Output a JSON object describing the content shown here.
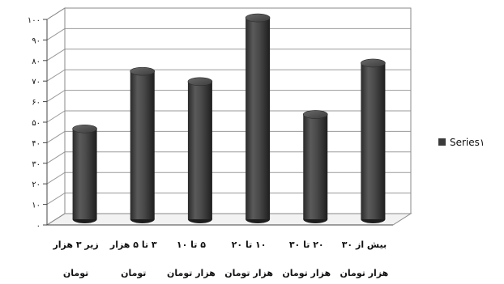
{
  "chart_data": {
    "type": "bar",
    "style": "3d-cylinder",
    "categories": [
      [
        "زیر ۳ هزار",
        "تومان"
      ],
      [
        "۳ تا ۵ هزار",
        "تومان"
      ],
      [
        "۵ تا ۱۰",
        "هزار تومان"
      ],
      [
        "۱۰ تا ۲۰",
        "هزار تومان"
      ],
      [
        "۲۰ تا ۳۰",
        "هزار تومان"
      ],
      [
        "بیش از ۳۰",
        "هزار تومان"
      ]
    ],
    "series": [
      {
        "name": "Series۱",
        "values": [
          44,
          72,
          67,
          98,
          51,
          76
        ],
        "color": "#3a3a3a"
      }
    ],
    "yticks": [
      "۰",
      "۱۰",
      "۲۰",
      "۳۰",
      "۴۰",
      "۵۰",
      "۶۰",
      "۷۰",
      "۸۰",
      "۹۰",
      "۱۰۰"
    ],
    "ylim": [
      0,
      100
    ],
    "grid": true,
    "legend_position": "right",
    "title": "",
    "xlabel": "",
    "ylabel": ""
  }
}
